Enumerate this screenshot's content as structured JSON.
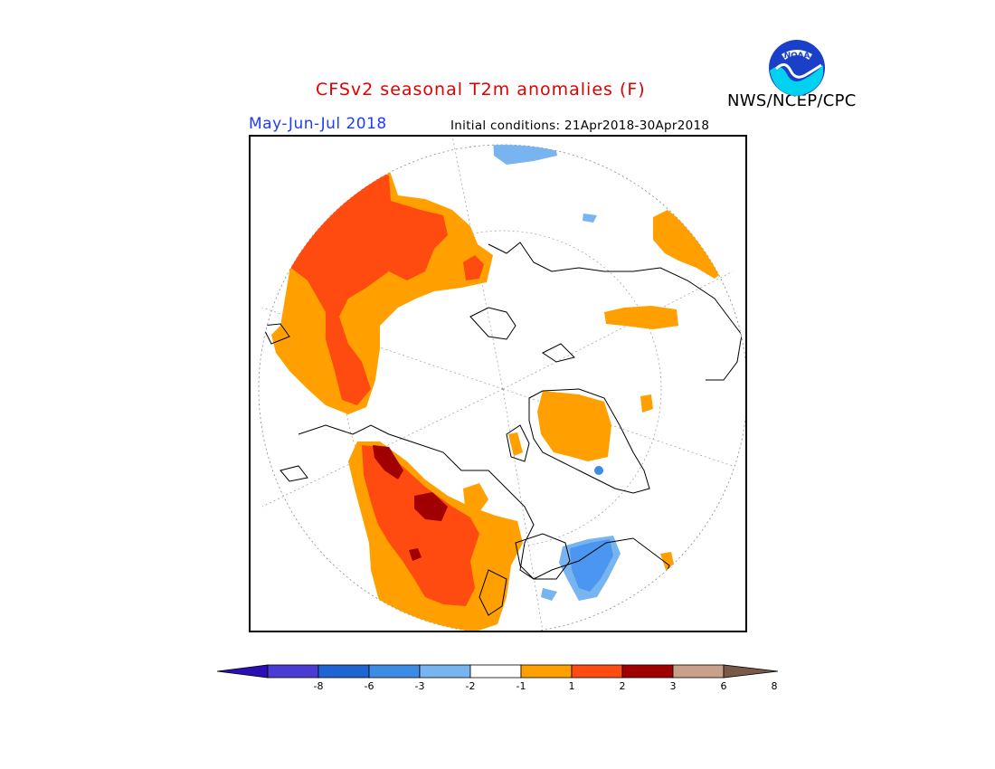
{
  "header": {
    "title": "CFSv2 seasonal T2m anomalies (F)",
    "period": "May-Jun-Jul 2018",
    "initial_conditions": "Initial conditions: 21Apr2018-30Apr2018",
    "agency": "NWS/NCEP/CPC",
    "logo_text": "NOAA"
  },
  "colors": {
    "title": "#e00000",
    "period": "#1e3cff",
    "land_outline": "#000000",
    "pos1": "#ffa000",
    "pos2": "#ff4a10",
    "pos3": "#a00000",
    "neg2": "#4a96f0",
    "neg1": "#78b4f0"
  },
  "legend": {
    "ticks": [
      "-8",
      "-6",
      "-3",
      "-2",
      "-1",
      "1",
      "2",
      "3",
      "6",
      "8"
    ],
    "bins": [
      {
        "color": "#2a0fb4"
      },
      {
        "color": "#4a3cd2"
      },
      {
        "color": "#1e64d2"
      },
      {
        "color": "#3c8ce6"
      },
      {
        "color": "#78b4f0"
      },
      {
        "color": "#ffffff"
      },
      {
        "color": "#ffa000"
      },
      {
        "color": "#ff4a10"
      },
      {
        "color": "#a00000"
      },
      {
        "color": "#c8a08c"
      },
      {
        "color": "#7a5a46"
      }
    ]
  }
}
